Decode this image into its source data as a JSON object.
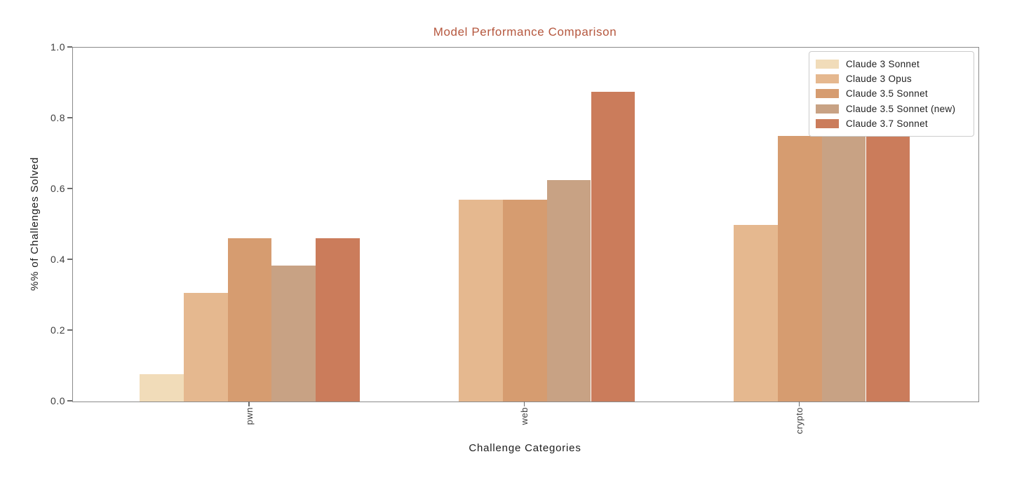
{
  "figure": {
    "title": "Model Performance Comparison",
    "x_axis_label": "Challenge Categories",
    "y_axis_label": "%% of Challenges Solved"
  },
  "colors": {
    "title_text": "#b5573e",
    "spine": "#8a8a8a",
    "tick_label": "#3c3c3c",
    "legend_border": "#cccccc"
  },
  "chart_data": {
    "type": "bar",
    "title": "Model Performance Comparison",
    "xlabel": "Challenge Categories",
    "ylabel": "%% of Challenges Solved",
    "categories": [
      "pwn",
      "web",
      "crypto"
    ],
    "series": [
      {
        "name": "Claude 3 Sonnet",
        "color": "#f1dcb9",
        "values": [
          0.077,
          0.0,
          0.0
        ]
      },
      {
        "name": "Claude 3 Opus",
        "color": "#e5b88f",
        "values": [
          0.308,
          0.571,
          0.5
        ]
      },
      {
        "name": "Claude 3.5 Sonnet",
        "color": "#d69c70",
        "values": [
          0.462,
          0.571,
          0.75
        ]
      },
      {
        "name": "Claude 3.5 Sonnet (new)",
        "color": "#c8a284",
        "values": [
          0.385,
          0.625,
          0.75
        ]
      },
      {
        "name": "Claude 3.7 Sonnet",
        "color": "#cb7c5b",
        "values": [
          0.462,
          0.875,
          0.75
        ]
      }
    ],
    "ylim": [
      0.0,
      1.0
    ],
    "yticks": [
      0.0,
      0.2,
      0.4,
      0.6,
      0.8,
      1.0
    ],
    "ytick_labels": [
      "0.0",
      "0.2",
      "0.4",
      "0.6",
      "0.8",
      "1.0"
    ],
    "grid": false,
    "legend_position": "upper right",
    "x_tick_rotation": 90
  }
}
